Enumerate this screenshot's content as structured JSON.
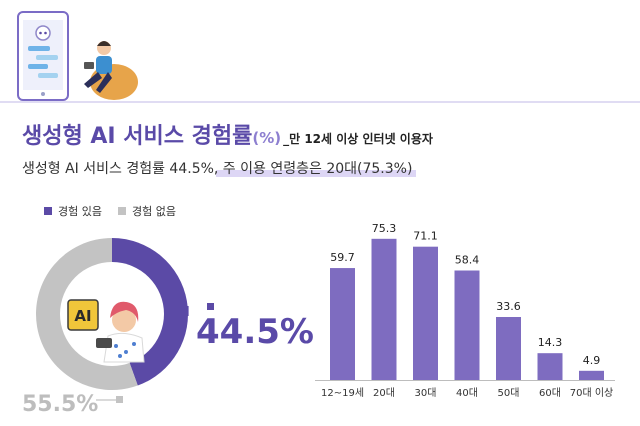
{
  "title": {
    "main": "생성형 AI 서비스 경험률",
    "unit": "(%)",
    "suffix": "_만 12세 이상 인터넷 이용자"
  },
  "subtitle": {
    "plain": "생성형 AI 서비스 경험률 44.5%,",
    "highlight": " 주 이용 연령층은 20대(75.3%)"
  },
  "illustration_ai_badge": "AI",
  "colors": {
    "purple": "#5b4aa6",
    "bar": "#7e6cc0",
    "gray": "#c3c3c3",
    "highlight": "#ddd6f5"
  },
  "chart_data": [
    {
      "type": "pie",
      "legend": [
        "경험 있음",
        "경험 없음"
      ],
      "legend_position": "top-left",
      "slices": [
        {
          "label": "경험 있음",
          "value": 44.5,
          "display": "44.5%"
        },
        {
          "label": "경험 없음",
          "value": 55.5,
          "display": "55.5%"
        }
      ],
      "hole": true
    },
    {
      "type": "bar",
      "categories": [
        "12~19세",
        "20대",
        "30대",
        "40대",
        "50대",
        "60대",
        "70대 이상"
      ],
      "values": [
        59.7,
        75.3,
        71.1,
        58.4,
        33.6,
        14.3,
        4.9
      ],
      "labels": [
        "59.7",
        "75.3",
        "71.1",
        "58.4",
        "33.6",
        "14.3",
        "4.9"
      ],
      "ylim": [
        0,
        80
      ],
      "grid": false
    }
  ]
}
